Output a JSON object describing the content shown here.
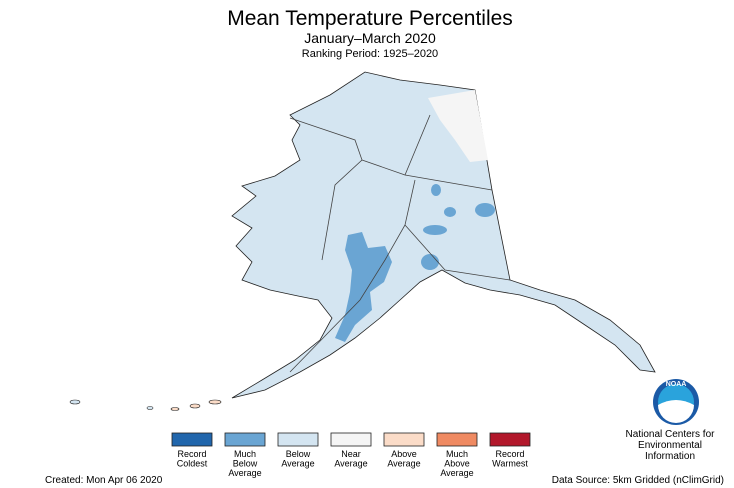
{
  "header": {
    "title": "Mean Temperature Percentiles",
    "subtitle": "January–March 2020",
    "period": "Ranking Period: 1925–2020"
  },
  "legend": {
    "items": [
      {
        "label": [
          "Record",
          "Coldest"
        ],
        "color": "#2166ac"
      },
      {
        "label": [
          "Much",
          "Below",
          "Average"
        ],
        "color": "#6aa5d3"
      },
      {
        "label": [
          "Below",
          "Average"
        ],
        "color": "#d4e5f1"
      },
      {
        "label": [
          "Near",
          "Average"
        ],
        "color": "#f5f5f5"
      },
      {
        "label": [
          "Above",
          "Average"
        ],
        "color": "#fbdcc8"
      },
      {
        "label": [
          "Much",
          "Above",
          "Average"
        ],
        "color": "#ef8a62"
      },
      {
        "label": [
          "Record",
          "Warmest"
        ],
        "color": "#b2182b"
      }
    ]
  },
  "logo": {
    "mark": "NOAA",
    "org": [
      "National Centers for",
      "Environmental",
      "Information"
    ]
  },
  "footer": {
    "created": "Created: Mon Apr 06 2020",
    "source": "Data Source: 5km Gridded (nClimGrid)"
  }
}
